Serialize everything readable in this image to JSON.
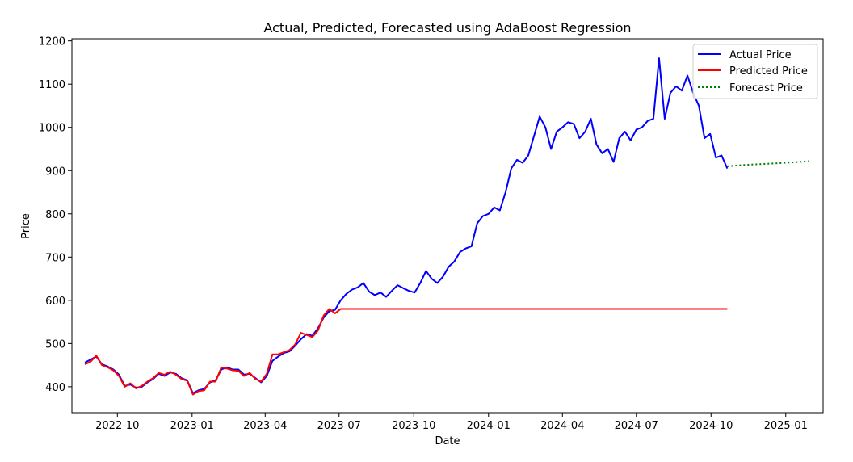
{
  "chart_data": {
    "type": "line",
    "title": "Actual, Predicted, Forecasted using AdaBoost Regression",
    "xlabel": "Date",
    "ylabel": "Price",
    "xlim": [
      "2022-08-06",
      "2025-02-16"
    ],
    "ylim": [
      340,
      1205
    ],
    "x_ticks": [
      "2022-10",
      "2023-01",
      "2023-04",
      "2023-07",
      "2023-10",
      "2024-01",
      "2024-04",
      "2024-07",
      "2024-10",
      "2025-01"
    ],
    "y_ticks": [
      400,
      500,
      600,
      700,
      800,
      900,
      1000,
      1100,
      1200
    ],
    "grid": false,
    "legend_position": "top-right",
    "series": [
      {
        "name": "Actual Price",
        "color": "#0000ff",
        "style": "solid",
        "points": [
          [
            "2022-08-22",
            456
          ],
          [
            "2022-08-29",
            463
          ],
          [
            "2022-09-05",
            470
          ],
          [
            "2022-09-12",
            452
          ],
          [
            "2022-09-19",
            447
          ],
          [
            "2022-09-26",
            440
          ],
          [
            "2022-10-03",
            428
          ],
          [
            "2022-10-10",
            402
          ],
          [
            "2022-10-17",
            405
          ],
          [
            "2022-10-24",
            398
          ],
          [
            "2022-10-31",
            400
          ],
          [
            "2022-11-07",
            410
          ],
          [
            "2022-11-14",
            418
          ],
          [
            "2022-11-21",
            430
          ],
          [
            "2022-11-28",
            425
          ],
          [
            "2022-12-05",
            433
          ],
          [
            "2022-12-12",
            430
          ],
          [
            "2022-12-19",
            420
          ],
          [
            "2022-12-26",
            415
          ],
          [
            "2023-01-02",
            385
          ],
          [
            "2023-01-09",
            392
          ],
          [
            "2023-01-16",
            395
          ],
          [
            "2023-01-23",
            410
          ],
          [
            "2023-01-30",
            415
          ],
          [
            "2023-02-06",
            440
          ],
          [
            "2023-02-13",
            445
          ],
          [
            "2023-02-20",
            440
          ],
          [
            "2023-02-27",
            440
          ],
          [
            "2023-03-06",
            428
          ],
          [
            "2023-03-13",
            430
          ],
          [
            "2023-03-20",
            420
          ],
          [
            "2023-03-27",
            410
          ],
          [
            "2023-04-03",
            425
          ],
          [
            "2023-04-10",
            460
          ],
          [
            "2023-04-17",
            470
          ],
          [
            "2023-04-24",
            478
          ],
          [
            "2023-05-01",
            482
          ],
          [
            "2023-05-08",
            495
          ],
          [
            "2023-05-15",
            510
          ],
          [
            "2023-05-22",
            522
          ],
          [
            "2023-05-29",
            518
          ],
          [
            "2023-06-05",
            535
          ],
          [
            "2023-06-12",
            560
          ],
          [
            "2023-06-19",
            575
          ],
          [
            "2023-06-26",
            578
          ],
          [
            "2023-07-03",
            600
          ],
          [
            "2023-07-10",
            615
          ],
          [
            "2023-07-17",
            625
          ],
          [
            "2023-07-24",
            630
          ],
          [
            "2023-07-31",
            640
          ],
          [
            "2023-08-07",
            620
          ],
          [
            "2023-08-14",
            612
          ],
          [
            "2023-08-21",
            618
          ],
          [
            "2023-08-28",
            608
          ],
          [
            "2023-09-04",
            622
          ],
          [
            "2023-09-11",
            635
          ],
          [
            "2023-09-18",
            628
          ],
          [
            "2023-09-25",
            622
          ],
          [
            "2023-10-02",
            618
          ],
          [
            "2023-10-09",
            640
          ],
          [
            "2023-10-16",
            668
          ],
          [
            "2023-10-23",
            650
          ],
          [
            "2023-10-30",
            640
          ],
          [
            "2023-11-06",
            655
          ],
          [
            "2023-11-13",
            678
          ],
          [
            "2023-11-20",
            690
          ],
          [
            "2023-11-27",
            712
          ],
          [
            "2023-12-04",
            720
          ],
          [
            "2023-12-11",
            725
          ],
          [
            "2023-12-18",
            778
          ],
          [
            "2023-12-25",
            795
          ],
          [
            "2024-01-01",
            800
          ],
          [
            "2024-01-08",
            815
          ],
          [
            "2024-01-15",
            808
          ],
          [
            "2024-01-22",
            850
          ],
          [
            "2024-01-29",
            905
          ],
          [
            "2024-02-05",
            925
          ],
          [
            "2024-02-12",
            918
          ],
          [
            "2024-02-19",
            935
          ],
          [
            "2024-02-26",
            980
          ],
          [
            "2024-03-04",
            1025
          ],
          [
            "2024-03-11",
            1000
          ],
          [
            "2024-03-18",
            950
          ],
          [
            "2024-03-25",
            990
          ],
          [
            "2024-04-01",
            1000
          ],
          [
            "2024-04-08",
            1012
          ],
          [
            "2024-04-15",
            1008
          ],
          [
            "2024-04-22",
            975
          ],
          [
            "2024-04-29",
            990
          ],
          [
            "2024-05-06",
            1020
          ],
          [
            "2024-05-13",
            960
          ],
          [
            "2024-05-20",
            940
          ],
          [
            "2024-05-27",
            950
          ],
          [
            "2024-06-03",
            920
          ],
          [
            "2024-06-10",
            975
          ],
          [
            "2024-06-17",
            990
          ],
          [
            "2024-06-24",
            970
          ],
          [
            "2024-07-01",
            995
          ],
          [
            "2024-07-08",
            1000
          ],
          [
            "2024-07-15",
            1015
          ],
          [
            "2024-07-22",
            1020
          ],
          [
            "2024-07-29",
            1160
          ],
          [
            "2024-08-05",
            1020
          ],
          [
            "2024-08-12",
            1080
          ],
          [
            "2024-08-19",
            1095
          ],
          [
            "2024-08-26",
            1085
          ],
          [
            "2024-09-02",
            1120
          ],
          [
            "2024-09-09",
            1080
          ],
          [
            "2024-09-16",
            1050
          ],
          [
            "2024-09-23",
            975
          ],
          [
            "2024-09-30",
            985
          ],
          [
            "2024-10-07",
            930
          ],
          [
            "2024-10-14",
            935
          ],
          [
            "2024-10-21",
            905
          ]
        ]
      },
      {
        "name": "Predicted Price",
        "color": "#ff0000",
        "style": "solid",
        "points": [
          [
            "2022-08-22",
            452
          ],
          [
            "2022-08-29",
            458
          ],
          [
            "2022-09-05",
            472
          ],
          [
            "2022-09-12",
            450
          ],
          [
            "2022-09-19",
            445
          ],
          [
            "2022-09-26",
            438
          ],
          [
            "2022-10-03",
            425
          ],
          [
            "2022-10-10",
            400
          ],
          [
            "2022-10-17",
            408
          ],
          [
            "2022-10-24",
            396
          ],
          [
            "2022-10-31",
            402
          ],
          [
            "2022-11-07",
            412
          ],
          [
            "2022-11-14",
            420
          ],
          [
            "2022-11-21",
            432
          ],
          [
            "2022-11-28",
            428
          ],
          [
            "2022-12-05",
            435
          ],
          [
            "2022-12-12",
            428
          ],
          [
            "2022-12-19",
            418
          ],
          [
            "2022-12-26",
            414
          ],
          [
            "2023-01-02",
            382
          ],
          [
            "2023-01-09",
            390
          ],
          [
            "2023-01-16",
            392
          ],
          [
            "2023-01-23",
            412
          ],
          [
            "2023-01-30",
            412
          ],
          [
            "2023-02-06",
            445
          ],
          [
            "2023-02-13",
            442
          ],
          [
            "2023-02-20",
            438
          ],
          [
            "2023-02-27",
            437
          ],
          [
            "2023-03-06",
            425
          ],
          [
            "2023-03-13",
            432
          ],
          [
            "2023-03-20",
            418
          ],
          [
            "2023-03-27",
            412
          ],
          [
            "2023-04-03",
            430
          ],
          [
            "2023-04-10",
            475
          ],
          [
            "2023-04-17",
            475
          ],
          [
            "2023-04-24",
            480
          ],
          [
            "2023-05-01",
            485
          ],
          [
            "2023-05-08",
            498
          ],
          [
            "2023-05-15",
            525
          ],
          [
            "2023-05-22",
            520
          ],
          [
            "2023-05-29",
            515
          ],
          [
            "2023-06-05",
            530
          ],
          [
            "2023-06-12",
            565
          ],
          [
            "2023-06-19",
            580
          ],
          [
            "2023-06-26",
            570
          ],
          [
            "2023-07-03",
            580
          ],
          [
            "2024-10-21",
            580
          ]
        ]
      },
      {
        "name": "Forecast Price",
        "color": "#008000",
        "style": "dotted",
        "points": [
          [
            "2024-10-21",
            910
          ],
          [
            "2024-11-10",
            913
          ],
          [
            "2024-11-30",
            915
          ],
          [
            "2024-12-20",
            917
          ],
          [
            "2025-01-09",
            919
          ],
          [
            "2025-01-29",
            922
          ]
        ]
      }
    ]
  }
}
